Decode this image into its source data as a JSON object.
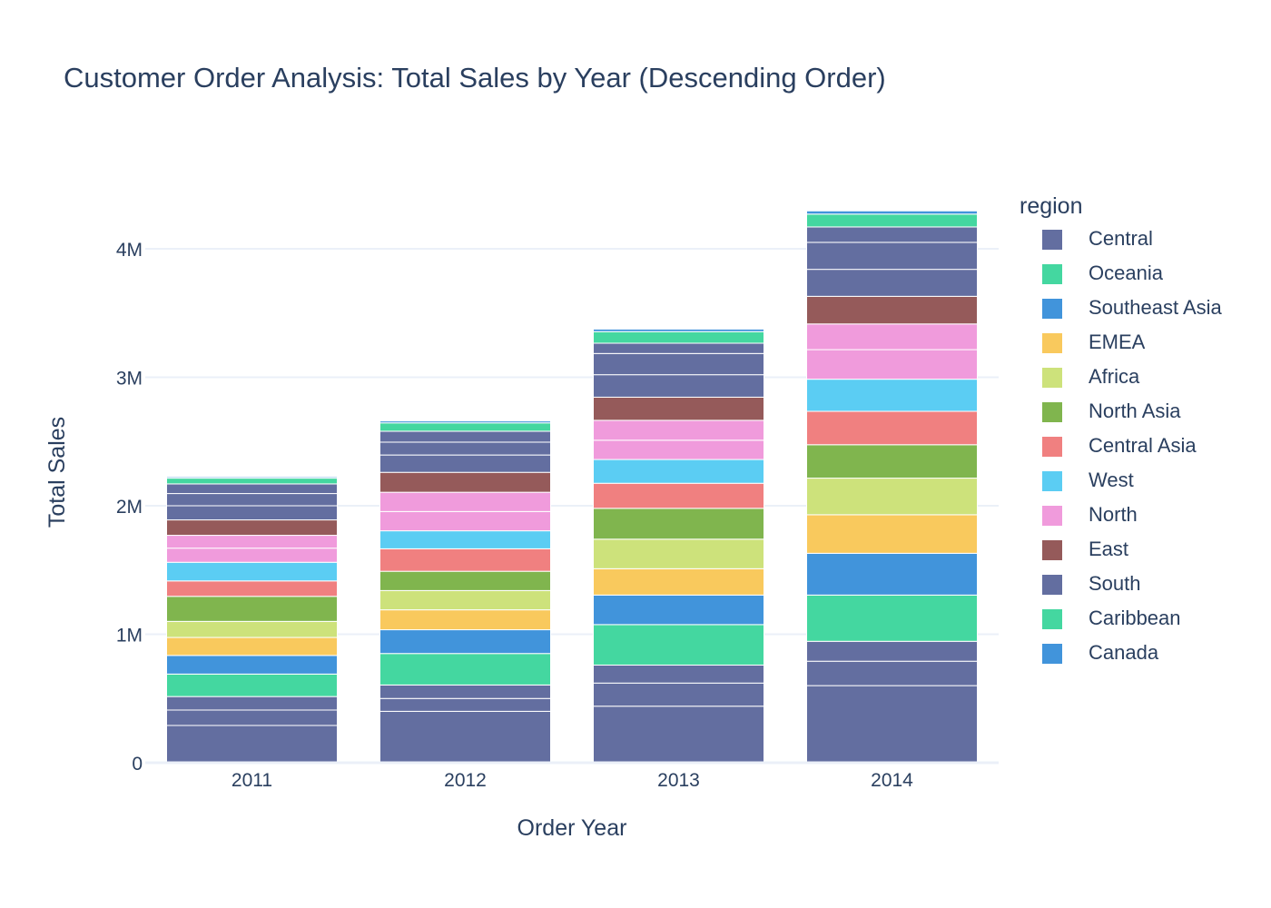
{
  "chart_data": {
    "type": "bar",
    "barmode": "stack",
    "title": "Customer Order Analysis: Total Sales by Year (Descending Order)",
    "xlabel": "Order Year",
    "ylabel": "Total Sales",
    "categories": [
      "2011",
      "2012",
      "2013",
      "2014"
    ],
    "ylim": [
      0,
      4500000
    ],
    "yticks": [
      {
        "value": 0,
        "label": "0"
      },
      {
        "value": 1000000,
        "label": "1M"
      },
      {
        "value": 2000000,
        "label": "2M"
      },
      {
        "value": 3000000,
        "label": "3M"
      },
      {
        "value": 4000000,
        "label": "4M"
      }
    ],
    "grid": true,
    "legend_title": "region",
    "legend_position": "right",
    "segments": [
      {
        "region": "Central",
        "values": [
          290000,
          400000,
          440000,
          600000
        ]
      },
      {
        "region": "Central",
        "values": [
          120000,
          100000,
          180000,
          190000
        ]
      },
      {
        "region": "Central",
        "values": [
          105000,
          105000,
          140000,
          155000
        ]
      },
      {
        "region": "Oceania",
        "values": [
          175000,
          245000,
          315000,
          360000
        ]
      },
      {
        "region": "Southeast Asia",
        "values": [
          145000,
          185000,
          230000,
          325000
        ]
      },
      {
        "region": "EMEA",
        "values": [
          140000,
          155000,
          205000,
          300000
        ]
      },
      {
        "region": "Africa",
        "values": [
          125000,
          150000,
          230000,
          285000
        ]
      },
      {
        "region": "North Asia",
        "values": [
          195000,
          150000,
          240000,
          260000
        ]
      },
      {
        "region": "Central Asia",
        "values": [
          120000,
          175000,
          195000,
          260000
        ]
      },
      {
        "region": "West",
        "values": [
          145000,
          140000,
          185000,
          250000
        ]
      },
      {
        "region": "North",
        "values": [
          110000,
          150000,
          150000,
          230000
        ]
      },
      {
        "region": "North",
        "values": [
          100000,
          150000,
          155000,
          200000
        ]
      },
      {
        "region": "East",
        "values": [
          120000,
          155000,
          180000,
          215000
        ]
      },
      {
        "region": "South",
        "values": [
          110000,
          135000,
          175000,
          210000
        ]
      },
      {
        "region": "South",
        "values": [
          95000,
          100000,
          165000,
          210000
        ]
      },
      {
        "region": "South",
        "values": [
          75000,
          85000,
          80000,
          120000
        ]
      },
      {
        "region": "Caribbean",
        "values": [
          45000,
          65000,
          90000,
          100000
        ]
      },
      {
        "region": "Canada",
        "values": [
          10000,
          15000,
          20000,
          25000
        ]
      }
    ],
    "legend": [
      {
        "name": "Central",
        "color": "#636EA0"
      },
      {
        "name": "Oceania",
        "color": "#44D7A0"
      },
      {
        "name": "Southeast Asia",
        "color": "#4194DB"
      },
      {
        "name": "EMEA",
        "color": "#F9C95D"
      },
      {
        "name": "Africa",
        "color": "#CDE27B"
      },
      {
        "name": "North Asia",
        "color": "#80B54E"
      },
      {
        "name": "Central Asia",
        "color": "#F08080"
      },
      {
        "name": "West",
        "color": "#5BCDF3"
      },
      {
        "name": "North",
        "color": "#F09BDC"
      },
      {
        "name": "East",
        "color": "#955A5A"
      },
      {
        "name": "South",
        "color": "#636EA0"
      },
      {
        "name": "Caribbean",
        "color": "#44D7A0"
      },
      {
        "name": "Canada",
        "color": "#4194DB"
      }
    ]
  }
}
